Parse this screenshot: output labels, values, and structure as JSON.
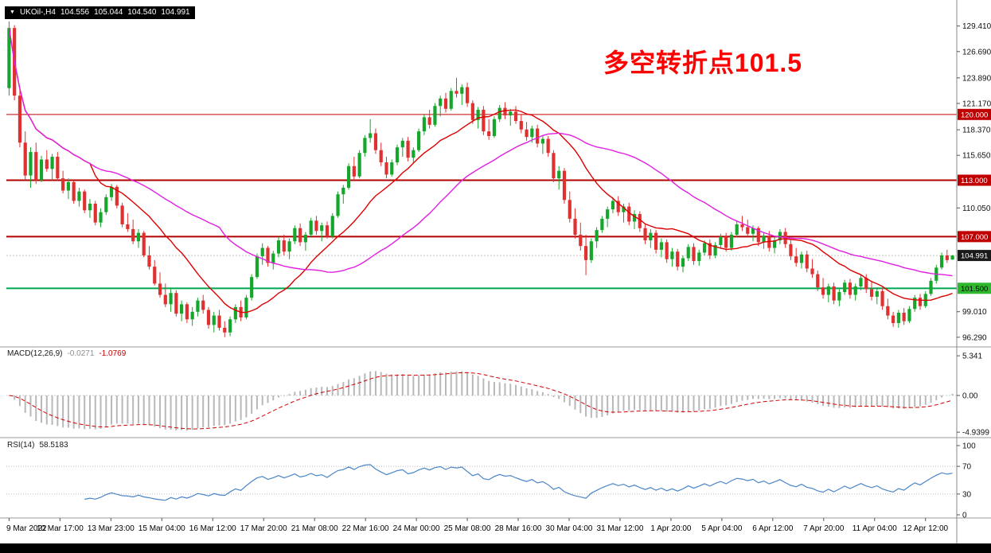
{
  "header": {
    "collapse_icon": "▼",
    "symbol": "UKOil-,H4",
    "open": "104.556",
    "high": "105.044",
    "low": "104.540",
    "close": "104.991"
  },
  "annotation": {
    "text": "多空转折点101.5",
    "color": "#ff0000"
  },
  "indicators": {
    "macd": {
      "name": "MACD(12,26,9)",
      "value": "-0.0271",
      "signal_value": "-1.0769",
      "ticks": [
        "5.341",
        "0.00",
        "-4.9399"
      ]
    },
    "rsi": {
      "name": "RSI(14)",
      "value": "58.5183",
      "ticks": [
        "100",
        "70",
        "30",
        "0"
      ]
    }
  },
  "axis": {
    "price_ticks": [
      "129.410",
      "126.690",
      "123.890",
      "121.170",
      "118.370",
      "115.650",
      "110.050",
      "99.010",
      "96.290"
    ],
    "badges": [
      {
        "label": "120.000",
        "price": 120.0,
        "bg": "#c00000",
        "fg": "#ffffff"
      },
      {
        "label": "113.000",
        "price": 113.0,
        "bg": "#c00000",
        "fg": "#ffffff"
      },
      {
        "label": "107.000",
        "price": 107.0,
        "bg": "#c00000",
        "fg": "#ffffff"
      },
      {
        "label": "104.991",
        "price": 104.991,
        "bg": "#1a1a1a",
        "fg": "#ffffff"
      },
      {
        "label": "101.500",
        "price": 101.5,
        "bg": "#2db82d",
        "fg": "#000000"
      }
    ]
  },
  "chart_data": {
    "type": "candlestick",
    "title": "UKOil- H4",
    "symbol": "UKOil-",
    "timeframe": "H4",
    "price_range": [
      95.6,
      131.5
    ],
    "last_price": 104.991,
    "x_labels": [
      "9 Mar 2022",
      "10 Mar 17:00",
      "13 Mar 23:00",
      "15 Mar 04:00",
      "16 Mar 12:00",
      "17 Mar 20:00",
      "21 Mar 08:00",
      "22 Mar 16:00",
      "24 Mar 00:00",
      "25 Mar 08:00",
      "28 Mar 16:00",
      "30 Mar 04:00",
      "31 Mar 12:00",
      "1 Apr 20:00",
      "5 Apr 04:00",
      "6 Apr 12:00",
      "7 Apr 20:00",
      "11 Apr 04:00",
      "12 Apr 12:00"
    ],
    "hlines": [
      {
        "price": 120.0,
        "color": "#c00000",
        "width": 1
      },
      {
        "price": 113.0,
        "color": "#b00000",
        "width": 2
      },
      {
        "price": 107.0,
        "color": "#b00000",
        "width": 2
      },
      {
        "price": 101.5,
        "color": "#00a64f",
        "width": 2
      }
    ],
    "moving_averages": [
      {
        "type": "sma",
        "period": 16,
        "color": "#dd0000"
      },
      {
        "type": "sma",
        "period": 40,
        "color": "#e020e0"
      }
    ],
    "macd_settings": {
      "fast": 12,
      "slow": 26,
      "signal": 9,
      "range": [
        -4.9399,
        5.341
      ]
    },
    "rsi_settings": {
      "period": 14,
      "levels": [
        30,
        70
      ],
      "range": [
        0,
        100
      ]
    },
    "colors": {
      "up": "#17a62c",
      "down": "#e03131",
      "histogram": "#b8b8b8",
      "signal": "#d40000",
      "rsi": "#4a86c8"
    },
    "candles": [
      [
        122.8,
        129.9,
        122.0,
        129.2
      ],
      [
        129.2,
        129.5,
        121.5,
        122.0
      ],
      [
        122.0,
        123.0,
        116.5,
        117.0
      ],
      [
        117.0,
        118.2,
        113.0,
        113.5
      ],
      [
        113.5,
        116.5,
        112.2,
        116.0
      ],
      [
        116.0,
        117.0,
        112.6,
        113.0
      ],
      [
        113.0,
        115.6,
        112.8,
        115.2
      ],
      [
        115.2,
        116.2,
        113.9,
        114.2
      ],
      [
        114.2,
        115.8,
        113.0,
        115.5
      ],
      [
        115.5,
        116.0,
        112.9,
        113.2
      ],
      [
        113.2,
        114.0,
        111.6,
        111.9
      ],
      [
        111.9,
        113.2,
        111.0,
        112.8
      ],
      [
        112.8,
        113.0,
        110.5,
        110.8
      ],
      [
        110.8,
        112.2,
        110.2,
        111.8
      ],
      [
        111.8,
        112.0,
        109.5,
        109.8
      ],
      [
        109.8,
        111.0,
        109.0,
        110.5
      ],
      [
        110.5,
        110.8,
        108.2,
        108.5
      ],
      [
        108.5,
        110.0,
        108.0,
        109.6
      ],
      [
        109.6,
        111.5,
        109.3,
        111.2
      ],
      [
        111.2,
        112.6,
        110.8,
        112.3
      ],
      [
        112.3,
        112.5,
        110.0,
        110.3
      ],
      [
        110.3,
        110.6,
        108.0,
        108.3
      ],
      [
        108.3,
        109.5,
        107.5,
        107.8
      ],
      [
        107.8,
        108.8,
        106.2,
        106.5
      ],
      [
        106.5,
        107.8,
        105.8,
        107.4
      ],
      [
        107.4,
        107.6,
        104.8,
        105.0
      ],
      [
        105.0,
        106.0,
        103.5,
        103.8
      ],
      [
        103.8,
        104.5,
        101.8,
        102.0
      ],
      [
        102.0,
        103.2,
        100.5,
        100.8
      ],
      [
        100.8,
        102.0,
        99.5,
        99.8
      ],
      [
        99.8,
        101.5,
        99.0,
        101.0
      ],
      [
        101.0,
        101.3,
        98.5,
        98.8
      ],
      [
        98.8,
        100.2,
        98.0,
        99.8
      ],
      [
        99.8,
        100.0,
        97.8,
        98.2
      ],
      [
        98.2,
        99.5,
        97.5,
        99.0
      ],
      [
        99.0,
        100.5,
        98.5,
        100.2
      ],
      [
        100.2,
        100.8,
        98.8,
        99.2
      ],
      [
        99.2,
        99.5,
        97.2,
        97.6
      ],
      [
        97.6,
        99.0,
        96.8,
        98.6
      ],
      [
        98.6,
        99.2,
        97.0,
        97.3
      ],
      [
        97.3,
        98.0,
        96.3,
        96.8
      ],
      [
        96.8,
        98.5,
        96.4,
        98.2
      ],
      [
        98.2,
        99.8,
        97.8,
        99.5
      ],
      [
        99.5,
        100.2,
        98.0,
        98.4
      ],
      [
        98.4,
        100.8,
        98.2,
        100.5
      ],
      [
        100.5,
        103.0,
        100.2,
        102.7
      ],
      [
        102.7,
        105.2,
        102.5,
        104.9
      ],
      [
        104.9,
        106.3,
        104.0,
        105.8
      ],
      [
        105.8,
        106.0,
        103.8,
        104.2
      ],
      [
        104.2,
        105.5,
        103.5,
        105.2
      ],
      [
        105.2,
        107.0,
        104.8,
        106.6
      ],
      [
        106.6,
        107.2,
        105.0,
        105.4
      ],
      [
        105.4,
        106.8,
        104.6,
        106.5
      ],
      [
        106.5,
        108.2,
        106.2,
        107.9
      ],
      [
        107.9,
        108.4,
        106.0,
        106.4
      ],
      [
        106.4,
        107.5,
        105.5,
        107.2
      ],
      [
        107.2,
        109.0,
        107.0,
        108.7
      ],
      [
        108.7,
        109.2,
        107.2,
        107.6
      ],
      [
        107.6,
        108.5,
        106.5,
        108.2
      ],
      [
        108.2,
        108.6,
        106.8,
        107.0
      ],
      [
        107.0,
        109.5,
        106.8,
        109.2
      ],
      [
        109.2,
        111.8,
        109.0,
        111.5
      ],
      [
        111.5,
        112.5,
        110.5,
        112.2
      ],
      [
        112.2,
        114.8,
        112.0,
        114.5
      ],
      [
        114.5,
        115.5,
        113.0,
        113.4
      ],
      [
        113.4,
        116.2,
        113.2,
        115.9
      ],
      [
        115.9,
        117.8,
        115.5,
        117.5
      ],
      [
        117.5,
        119.5,
        117.0,
        118.0
      ],
      [
        118.0,
        118.5,
        115.8,
        116.2
      ],
      [
        116.2,
        117.0,
        114.5,
        114.9
      ],
      [
        114.9,
        115.5,
        113.2,
        113.6
      ],
      [
        113.6,
        115.2,
        113.4,
        114.9
      ],
      [
        114.9,
        116.8,
        114.6,
        116.5
      ],
      [
        116.5,
        117.5,
        115.5,
        117.2
      ],
      [
        117.2,
        117.6,
        115.0,
        115.4
      ],
      [
        115.4,
        116.5,
        114.8,
        116.2
      ],
      [
        116.2,
        118.5,
        116.0,
        118.2
      ],
      [
        118.2,
        120.0,
        117.8,
        119.7
      ],
      [
        119.7,
        120.5,
        118.5,
        118.9
      ],
      [
        118.9,
        121.2,
        118.7,
        120.9
      ],
      [
        120.9,
        122.0,
        119.8,
        121.7
      ],
      [
        121.7,
        122.3,
        120.2,
        120.6
      ],
      [
        120.6,
        122.8,
        120.4,
        122.5
      ],
      [
        122.5,
        123.9,
        121.8,
        122.2
      ],
      [
        122.2,
        123.2,
        121.0,
        122.9
      ],
      [
        122.9,
        123.4,
        120.8,
        121.2
      ],
      [
        121.2,
        121.5,
        119.0,
        119.4
      ],
      [
        119.4,
        120.8,
        118.5,
        120.5
      ],
      [
        120.5,
        120.9,
        117.8,
        118.2
      ],
      [
        118.2,
        119.5,
        117.3,
        117.7
      ],
      [
        117.7,
        119.8,
        117.5,
        119.5
      ],
      [
        119.5,
        121.0,
        119.2,
        120.7
      ],
      [
        120.7,
        121.3,
        119.5,
        119.9
      ],
      [
        119.9,
        120.6,
        118.8,
        120.3
      ],
      [
        120.3,
        120.9,
        119.0,
        119.3
      ],
      [
        119.3,
        120.0,
        118.0,
        118.4
      ],
      [
        118.4,
        119.2,
        117.2,
        117.6
      ],
      [
        117.6,
        118.8,
        117.0,
        118.5
      ],
      [
        118.5,
        118.9,
        116.5,
        116.9
      ],
      [
        116.9,
        117.8,
        115.8,
        117.4
      ],
      [
        117.4,
        117.7,
        115.5,
        115.9
      ],
      [
        115.9,
        116.2,
        112.8,
        113.2
      ],
      [
        113.2,
        114.5,
        112.0,
        114.0
      ],
      [
        114.0,
        114.3,
        110.5,
        110.9
      ],
      [
        110.9,
        111.8,
        108.5,
        108.9
      ],
      [
        108.9,
        110.0,
        106.8,
        107.2
      ],
      [
        107.2,
        108.5,
        105.5,
        106.0
      ],
      [
        106.0,
        107.2,
        102.9,
        104.5
      ],
      [
        104.5,
        106.8,
        104.2,
        106.5
      ],
      [
        106.5,
        108.0,
        105.8,
        107.7
      ],
      [
        107.7,
        109.2,
        107.4,
        108.9
      ],
      [
        108.9,
        110.2,
        108.0,
        109.9
      ],
      [
        109.9,
        111.2,
        109.5,
        110.8
      ],
      [
        110.8,
        111.3,
        109.2,
        109.6
      ],
      [
        109.6,
        110.5,
        108.5,
        110.2
      ],
      [
        110.2,
        110.6,
        108.2,
        108.6
      ],
      [
        108.6,
        109.8,
        107.8,
        109.4
      ],
      [
        109.4,
        109.7,
        107.5,
        107.9
      ],
      [
        107.9,
        108.4,
        106.2,
        106.6
      ],
      [
        106.6,
        107.8,
        105.8,
        107.4
      ],
      [
        107.4,
        107.7,
        105.2,
        105.6
      ],
      [
        105.6,
        106.8,
        104.8,
        106.4
      ],
      [
        106.4,
        106.7,
        104.2,
        104.6
      ],
      [
        104.6,
        105.8,
        103.8,
        105.4
      ],
      [
        105.4,
        105.7,
        103.4,
        103.8
      ],
      [
        103.8,
        105.0,
        103.2,
        104.7
      ],
      [
        104.7,
        106.2,
        104.4,
        105.9
      ],
      [
        105.9,
        106.3,
        104.0,
        104.4
      ],
      [
        104.4,
        105.6,
        103.9,
        105.3
      ],
      [
        105.3,
        106.6,
        105.0,
        106.3
      ],
      [
        106.3,
        106.7,
        104.6,
        105.0
      ],
      [
        105.0,
        106.4,
        104.7,
        106.1
      ],
      [
        106.1,
        107.3,
        105.7,
        107.0
      ],
      [
        107.0,
        107.4,
        105.4,
        105.8
      ],
      [
        105.8,
        107.5,
        105.5,
        107.2
      ],
      [
        107.2,
        108.6,
        106.9,
        108.3
      ],
      [
        108.3,
        109.2,
        107.6,
        108.0
      ],
      [
        108.0,
        108.8,
        106.9,
        107.3
      ],
      [
        107.3,
        108.2,
        106.5,
        107.9
      ],
      [
        107.9,
        108.1,
        106.0,
        106.4
      ],
      [
        106.4,
        107.4,
        105.7,
        107.1
      ],
      [
        107.1,
        107.6,
        105.4,
        105.8
      ],
      [
        105.8,
        106.9,
        105.2,
        106.6
      ],
      [
        106.6,
        107.8,
        106.2,
        107.5
      ],
      [
        107.5,
        107.9,
        105.8,
        106.2
      ],
      [
        106.2,
        106.6,
        104.5,
        104.9
      ],
      [
        104.9,
        105.8,
        103.8,
        104.2
      ],
      [
        104.2,
        105.4,
        103.6,
        105.1
      ],
      [
        105.1,
        105.5,
        103.2,
        103.6
      ],
      [
        103.6,
        104.6,
        102.6,
        103.0
      ],
      [
        103.0,
        103.4,
        101.2,
        101.6
      ],
      [
        101.6,
        102.6,
        100.4,
        100.8
      ],
      [
        100.8,
        102.0,
        100.0,
        101.7
      ],
      [
        101.7,
        102.1,
        99.8,
        100.2
      ],
      [
        100.2,
        101.4,
        99.6,
        101.1
      ],
      [
        101.1,
        102.4,
        100.8,
        102.1
      ],
      [
        102.1,
        102.5,
        100.4,
        100.8
      ],
      [
        100.8,
        102.0,
        100.2,
        101.7
      ],
      [
        101.7,
        102.9,
        101.3,
        102.6
      ],
      [
        102.6,
        103.0,
        101.0,
        101.4
      ],
      [
        101.4,
        102.2,
        100.2,
        100.6
      ],
      [
        100.6,
        101.6,
        99.8,
        101.2
      ],
      [
        101.2,
        101.5,
        99.2,
        99.6
      ],
      [
        99.6,
        100.4,
        98.2,
        98.6
      ],
      [
        98.6,
        99.0,
        97.4,
        97.8
      ],
      [
        97.8,
        99.2,
        97.3,
        98.9
      ],
      [
        98.9,
        99.4,
        97.6,
        98.0
      ],
      [
        98.0,
        99.6,
        97.8,
        99.3
      ],
      [
        99.3,
        100.8,
        99.0,
        100.5
      ],
      [
        100.5,
        100.9,
        99.2,
        99.6
      ],
      [
        99.6,
        101.2,
        99.4,
        100.9
      ],
      [
        100.9,
        102.6,
        100.7,
        102.3
      ],
      [
        102.3,
        104.0,
        102.0,
        103.7
      ],
      [
        103.7,
        105.3,
        103.5,
        105.0
      ],
      [
        105.0,
        105.6,
        104.2,
        104.5
      ],
      [
        104.556,
        105.044,
        104.54,
        104.991
      ]
    ]
  }
}
